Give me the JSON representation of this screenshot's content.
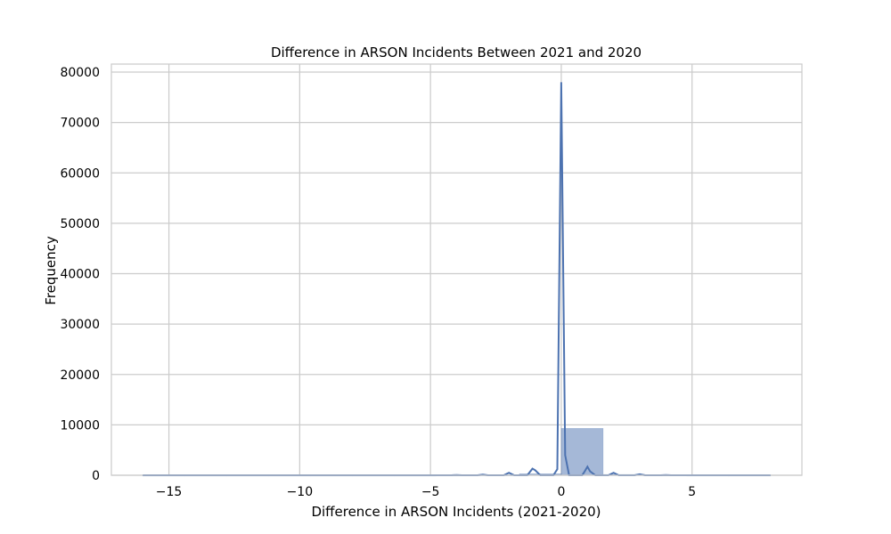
{
  "chart_data": {
    "type": "bar",
    "title": "Difference in ARSON Incidents Between 2021 and 2020",
    "xlabel": "Difference in ARSON Incidents (2021-2020)",
    "ylabel": "Frequency",
    "xlim": [
      -17.2,
      9.2
    ],
    "ylim": [
      0,
      81600
    ],
    "x_ticks": [
      -15,
      -10,
      -5,
      0,
      5
    ],
    "x_tick_labels": [
      "−15",
      "−10",
      "−5",
      "0",
      "5"
    ],
    "y_ticks": [
      0,
      10000,
      20000,
      30000,
      40000,
      50000,
      60000,
      70000,
      80000
    ],
    "y_tick_labels": [
      "0",
      "10000",
      "20000",
      "30000",
      "40000",
      "50000",
      "60000",
      "70000",
      "80000"
    ],
    "grid": true,
    "bar_color": "#4c72b0",
    "bars": [
      {
        "x0": -16.0,
        "x1": -14.4,
        "value": 0
      },
      {
        "x0": -14.4,
        "x1": -12.8,
        "value": 0
      },
      {
        "x0": -12.8,
        "x1": -11.2,
        "value": 0
      },
      {
        "x0": -11.2,
        "x1": -9.6,
        "value": 0
      },
      {
        "x0": -9.6,
        "x1": -8.0,
        "value": 0
      },
      {
        "x0": -8.0,
        "x1": -6.4,
        "value": 0
      },
      {
        "x0": -6.4,
        "x1": -4.8,
        "value": 0
      },
      {
        "x0": -4.8,
        "x1": -3.2,
        "value": 10
      },
      {
        "x0": -3.2,
        "x1": -1.6,
        "value": 40
      },
      {
        "x0": -1.6,
        "x1": 0.0,
        "value": 300
      },
      {
        "x0": 0.0,
        "x1": 1.6,
        "value": 9300
      },
      {
        "x0": 1.6,
        "x1": 3.2,
        "value": 150
      },
      {
        "x0": 3.2,
        "x1": 4.8,
        "value": 20
      },
      {
        "x0": 4.8,
        "x1": 6.4,
        "value": 5
      },
      {
        "x0": 6.4,
        "x1": 8.0,
        "value": 2
      }
    ],
    "kde": {
      "x": [
        -16,
        -5,
        -4.2,
        -4,
        -3.8,
        -3.2,
        -3,
        -2.8,
        -2.2,
        -2,
        -1.8,
        -1.3,
        -1.1,
        -1,
        -0.8,
        -0.3,
        -0.15,
        0,
        0.15,
        0.3,
        0.8,
        0.9,
        1,
        1.1,
        1.3,
        1.8,
        2,
        2.2,
        2.8,
        3,
        3.2,
        3.8,
        4,
        4.2,
        8
      ],
      "y": [
        0,
        0,
        0,
        60,
        0,
        0,
        150,
        0,
        0,
        500,
        0,
        0,
        1300,
        1000,
        0,
        0,
        1200,
        78000,
        4000,
        0,
        0,
        800,
        1700,
        800,
        0,
        0,
        500,
        0,
        0,
        200,
        0,
        0,
        60,
        0,
        0
      ]
    }
  }
}
